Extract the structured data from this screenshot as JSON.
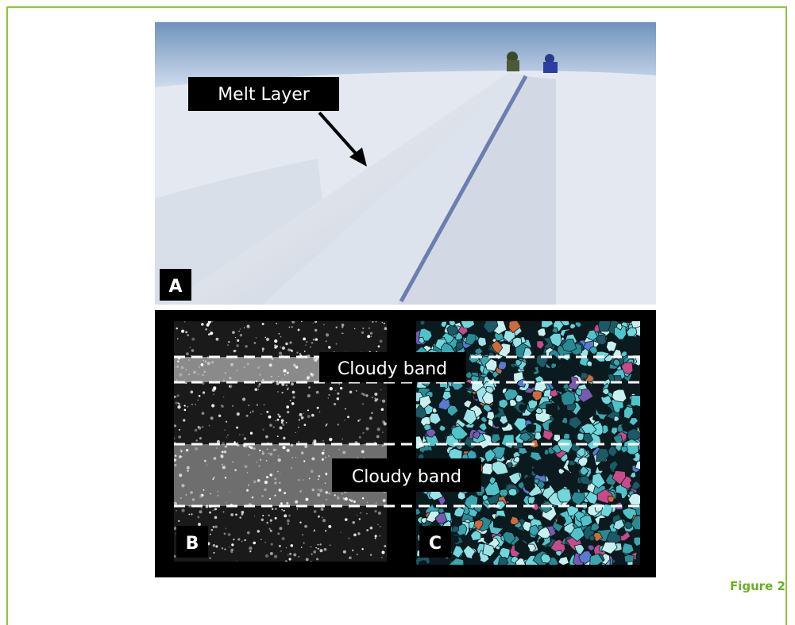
{
  "figure": {
    "label": "Figure 2",
    "panel_a": {
      "label": "A",
      "annotation": "Melt Layer"
    },
    "panel_b": {
      "label": "B"
    },
    "panel_c": {
      "label": "C"
    },
    "band_labels": [
      "Cloudy band",
      "Cloudy band"
    ]
  }
}
